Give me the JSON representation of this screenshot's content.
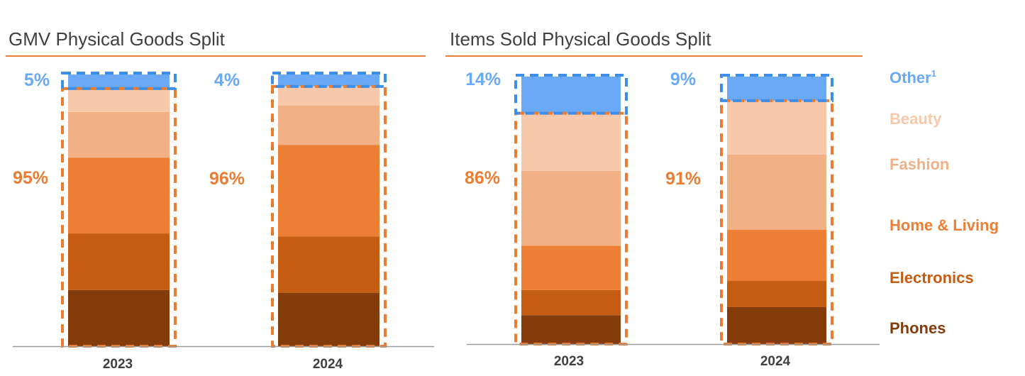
{
  "colors": {
    "Other": "#6aa9f5",
    "Beauty": "#f7c9aa",
    "Fashion": "#f2b085",
    "Home & Living": "#ec7f33",
    "Electronics": "#c45c12",
    "Phones": "#843c0a",
    "other_outline": "#3d8ee8",
    "core_outline": "#eb7d33",
    "title_rule": "#eb7d33"
  },
  "legend": {
    "items": [
      "Other",
      "Beauty",
      "Fashion",
      "Home & Living",
      "Electronics",
      "Phones"
    ],
    "other_footnote": "1"
  },
  "chart_data": [
    {
      "type": "bar",
      "stacked": true,
      "title": "GMV Physical Goods Split",
      "categories": [
        "2023",
        "2024"
      ],
      "ylim": [
        0,
        100
      ],
      "series": [
        {
          "name": "Phones",
          "values": [
            20.7,
            19.7
          ]
        },
        {
          "name": "Electronics",
          "values": [
            20.8,
            20.7
          ]
        },
        {
          "name": "Home & Living",
          "values": [
            27.9,
            33.7
          ]
        },
        {
          "name": "Fashion",
          "values": [
            16.8,
            14.6
          ]
        },
        {
          "name": "Beauty",
          "values": [
            8.6,
            7.0
          ]
        },
        {
          "name": "Other",
          "values": [
            5.2,
            4.4
          ]
        }
      ],
      "annotations": {
        "other_labels": [
          "5%",
          "4%"
        ],
        "core_labels": [
          "95%",
          "96%"
        ]
      }
    },
    {
      "type": "bar",
      "stacked": true,
      "title": "Items Sold Physical Goods Split",
      "categories": [
        "2023",
        "2024"
      ],
      "ylim": [
        0,
        100
      ],
      "series": [
        {
          "name": "Phones",
          "values": [
            10.8,
            13.8
          ]
        },
        {
          "name": "Electronics",
          "values": [
            9.4,
            9.8
          ]
        },
        {
          "name": "Home & Living",
          "values": [
            16.6,
            19.1
          ]
        },
        {
          "name": "Fashion",
          "values": [
            28.0,
            28.2
          ]
        },
        {
          "name": "Beauty",
          "values": [
            21.5,
            20.1
          ]
        },
        {
          "name": "Other",
          "values": [
            13.7,
            9.0
          ]
        }
      ],
      "annotations": {
        "other_labels": [
          "14%",
          "9%"
        ],
        "core_labels": [
          "86%",
          "91%"
        ]
      }
    }
  ]
}
